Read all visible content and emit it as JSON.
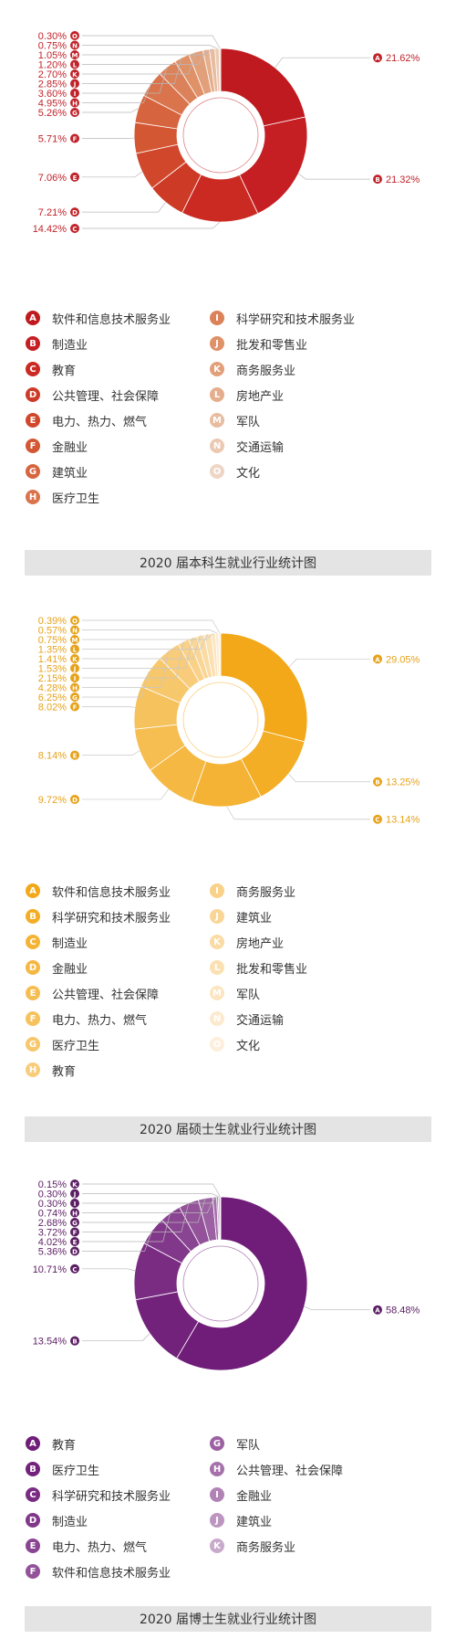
{
  "chart_data": [
    {
      "type": "pie",
      "title": "2020 届本科生就业行业统计图",
      "theme": {
        "label": "#c0232a",
        "line": "#b8b8b8",
        "slices": [
          "#bf1a1f",
          "#c51f24",
          "#ca2a22",
          "#cd3a26",
          "#d1472c",
          "#d45733",
          "#d6653f",
          "#d9744d",
          "#dc825b",
          "#df9168",
          "#e2a07a",
          "#e5ae8c",
          "#e8bca0",
          "#ebc9b3",
          "#eed6c6"
        ]
      },
      "slices": [
        {
          "badge": "A",
          "label": "软件和信息技术服务业",
          "value": 21.62,
          "value_text": "21.62%"
        },
        {
          "badge": "B",
          "label": "制造业",
          "value": 21.32,
          "value_text": "21.32%"
        },
        {
          "badge": "C",
          "label": "教育",
          "value": 14.42,
          "value_text": "14.42%"
        },
        {
          "badge": "D",
          "label": "公共管理、社会保障",
          "value": 7.21,
          "value_text": "7.21%"
        },
        {
          "badge": "E",
          "label": "电力、热力、燃气",
          "value": 7.06,
          "value_text": "7.06%"
        },
        {
          "badge": "F",
          "label": "金融业",
          "value": 5.71,
          "value_text": "5.71%"
        },
        {
          "badge": "G",
          "label": "建筑业",
          "value": 5.26,
          "value_text": "5.26%"
        },
        {
          "badge": "H",
          "label": "医疗卫生",
          "value": 4.95,
          "value_text": "4.95%"
        },
        {
          "badge": "I",
          "label": "科学研究和技术服务业",
          "value": 3.6,
          "value_text": "3.60%"
        },
        {
          "badge": "J",
          "label": "批发和零售业",
          "value": 2.85,
          "value_text": "2.85%"
        },
        {
          "badge": "K",
          "label": "商务服务业",
          "value": 2.7,
          "value_text": "2.70%"
        },
        {
          "badge": "L",
          "label": "房地产业",
          "value": 1.2,
          "value_text": "1.20%"
        },
        {
          "badge": "M",
          "label": "军队",
          "value": 1.05,
          "value_text": "1.05%"
        },
        {
          "badge": "N",
          "label": "交通运输",
          "value": 0.75,
          "value_text": "0.75%"
        },
        {
          "badge": "O",
          "label": "文化",
          "value": 0.3,
          "value_text": "0.30%"
        }
      ]
    },
    {
      "type": "pie",
      "title": "2020 届硕士生就业行业统计图",
      "theme": {
        "label": "#e6a21a",
        "line": "#c8c8c8",
        "slices": [
          "#f2a818",
          "#f3ae26",
          "#f4b334",
          "#f5b842",
          "#f6bd50",
          "#f6c25e",
          "#f7c76c",
          "#f8cc7a",
          "#f9d188",
          "#f9d696",
          "#fadba4",
          "#fbe0b2",
          "#fce5c0",
          "#fdeace",
          "#fdefdc"
        ]
      },
      "slices": [
        {
          "badge": "A",
          "label": "软件和信息技术服务业",
          "value": 29.05,
          "value_text": "29.05%"
        },
        {
          "badge": "B",
          "label": "科学研究和技术服务业",
          "value": 13.25,
          "value_text": "13.25%"
        },
        {
          "badge": "C",
          "label": "制造业",
          "value": 13.14,
          "value_text": "13.14%"
        },
        {
          "badge": "D",
          "label": "金融业",
          "value": 9.72,
          "value_text": "9.72%"
        },
        {
          "badge": "E",
          "label": "公共管理、社会保障",
          "value": 8.14,
          "value_text": "8.14%"
        },
        {
          "badge": "F",
          "label": "电力、热力、燃气",
          "value": 8.02,
          "value_text": "8.02%"
        },
        {
          "badge": "G",
          "label": "医疗卫生",
          "value": 6.25,
          "value_text": "6.25%"
        },
        {
          "badge": "H",
          "label": "教育",
          "value": 4.28,
          "value_text": "4.28%"
        },
        {
          "badge": "I",
          "label": "商务服务业",
          "value": 2.15,
          "value_text": "2.15%"
        },
        {
          "badge": "J",
          "label": "建筑业",
          "value": 1.53,
          "value_text": "1.53%"
        },
        {
          "badge": "K",
          "label": "房地产业",
          "value": 1.41,
          "value_text": "1.41%"
        },
        {
          "badge": "L",
          "label": "批发和零售业",
          "value": 1.35,
          "value_text": "1.35%"
        },
        {
          "badge": "M",
          "label": "军队",
          "value": 0.75,
          "value_text": "0.75%"
        },
        {
          "badge": "N",
          "label": "交通运输",
          "value": 0.57,
          "value_text": "0.57%"
        },
        {
          "badge": "O",
          "label": "文化",
          "value": 0.39,
          "value_text": "0.39%"
        }
      ]
    },
    {
      "type": "pie",
      "title": "2020 届博士生就业行业统计图",
      "theme": {
        "label": "#5b1f63",
        "line": "#b8b8b8",
        "slices": [
          "#6f1d78",
          "#73227c",
          "#7a2c83",
          "#82388a",
          "#8a4592",
          "#935299",
          "#9c61a2",
          "#a671ab",
          "#b183b5",
          "#bc96c0",
          "#c8aacb"
        ]
      },
      "slices": [
        {
          "badge": "A",
          "label": "教育",
          "value": 58.48,
          "value_text": "58.48%"
        },
        {
          "badge": "B",
          "label": "医疗卫生",
          "value": 13.54,
          "value_text": "13.54%"
        },
        {
          "badge": "C",
          "label": "科学研究和技术服务业",
          "value": 10.71,
          "value_text": "10.71%"
        },
        {
          "badge": "D",
          "label": "制造业",
          "value": 5.36,
          "value_text": "5.36%"
        },
        {
          "badge": "E",
          "label": "电力、热力、燃气",
          "value": 4.02,
          "value_text": "4.02%"
        },
        {
          "badge": "F",
          "label": "软件和信息技术服务业",
          "value": 3.72,
          "value_text": "3.72%"
        },
        {
          "badge": "G",
          "label": "军队",
          "value": 2.68,
          "value_text": "2.68%"
        },
        {
          "badge": "H",
          "label": "公共管理、社会保障",
          "value": 0.74,
          "value_text": "0.74%"
        },
        {
          "badge": "I",
          "label": "金融业",
          "value": 0.3,
          "value_text": "0.30%"
        },
        {
          "badge": "J",
          "label": "建筑业",
          "value": 0.3,
          "value_text": "0.30%"
        },
        {
          "badge": "K",
          "label": "商务服务业",
          "value": 0.15,
          "value_text": "0.15%"
        }
      ]
    }
  ]
}
